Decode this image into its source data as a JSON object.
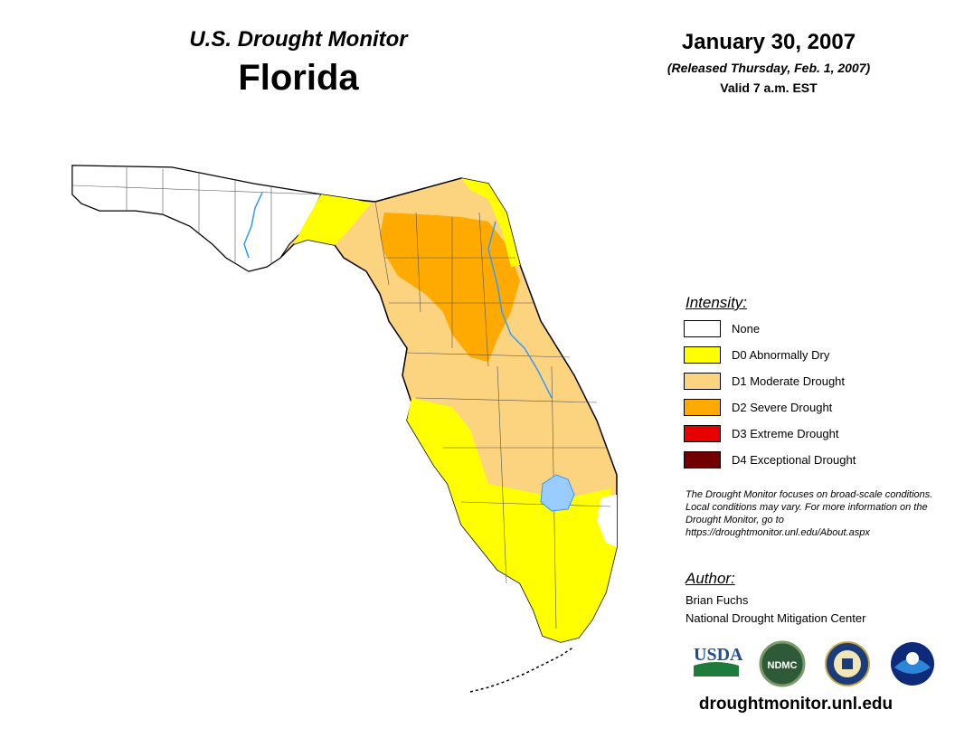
{
  "header": {
    "title": "U.S. Drought Monitor",
    "state": "Florida",
    "date": "January 30, 2007",
    "released": "(Released Thursday, Feb. 1, 2007)",
    "valid": "Valid 7 a.m. EST"
  },
  "legend": {
    "title": "Intensity:",
    "items": [
      {
        "label": "None",
        "color": "#ffffff"
      },
      {
        "label": "D0 Abnormally Dry",
        "color": "#ffff00"
      },
      {
        "label": "D1 Moderate Drought",
        "color": "#fcd37f"
      },
      {
        "label": "D2 Severe Drought",
        "color": "#ffaa00"
      },
      {
        "label": "D3 Extreme Drought",
        "color": "#e60000"
      },
      {
        "label": "D4 Exceptional Drought",
        "color": "#730000"
      }
    ]
  },
  "note": "The Drought Monitor focuses on broad-scale conditions. Local conditions may vary. For more information on the Drought Monitor, go to https://droughtmonitor.unl.edu/About.aspx",
  "author": {
    "title": "Author:",
    "name": "Brian Fuchs",
    "org": "National Drought Mitigation Center"
  },
  "logos": {
    "usda": "USDA",
    "ndmc": "NDMC"
  },
  "url": "droughtmonitor.unl.edu",
  "colors": {
    "water": "#99ccff",
    "river": "#3399ff",
    "lake_outline": "#3399ff"
  }
}
